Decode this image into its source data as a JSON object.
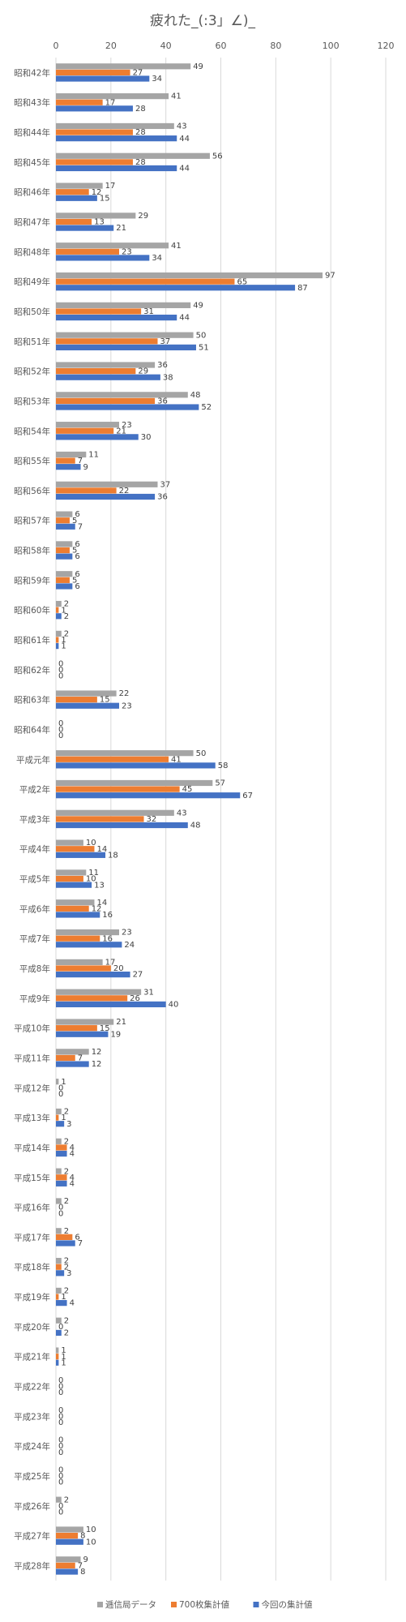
{
  "chart_data": {
    "type": "bar",
    "orientation": "horizontal",
    "title": "疲れた_(:3」∠)_",
    "xlim": [
      0,
      120
    ],
    "x_ticks": [
      "0",
      "20",
      "40",
      "60",
      "80",
      "100",
      "120"
    ],
    "grid": true,
    "legend_position": "bottom",
    "categories": [
      "昭和42年",
      "昭和43年",
      "昭和44年",
      "昭和45年",
      "昭和46年",
      "昭和47年",
      "昭和48年",
      "昭和49年",
      "昭和50年",
      "昭和51年",
      "昭和52年",
      "昭和53年",
      "昭和54年",
      "昭和55年",
      "昭和56年",
      "昭和57年",
      "昭和58年",
      "昭和59年",
      "昭和60年",
      "昭和61年",
      "昭和62年",
      "昭和63年",
      "昭和64年",
      "平成元年",
      "平成2年",
      "平成3年",
      "平成4年",
      "平成5年",
      "平成6年",
      "平成7年",
      "平成8年",
      "平成9年",
      "平成10年",
      "平成11年",
      "平成12年",
      "平成13年",
      "平成14年",
      "平成15年",
      "平成16年",
      "平成17年",
      "平成18年",
      "平成19年",
      "平成20年",
      "平成21年",
      "平成22年",
      "平成23年",
      "平成24年",
      "平成25年",
      "平成26年",
      "平成27年",
      "平成28年"
    ],
    "series": [
      {
        "name": "逓信局データ",
        "color": "#a5a5a5",
        "values": [
          49,
          41,
          43,
          56,
          17,
          29,
          41,
          97,
          49,
          50,
          36,
          48,
          23,
          11,
          37,
          6,
          6,
          6,
          2,
          2,
          0,
          22,
          0,
          50,
          57,
          43,
          10,
          11,
          14,
          23,
          17,
          31,
          21,
          12,
          1,
          2,
          2,
          2,
          2,
          2,
          2,
          2,
          2,
          1,
          0,
          0,
          0,
          0,
          2,
          10,
          9
        ]
      },
      {
        "name": "700枚集計値",
        "color": "#ed7d31",
        "values": [
          27,
          17,
          28,
          28,
          12,
          13,
          23,
          65,
          31,
          37,
          29,
          36,
          21,
          7,
          22,
          5,
          5,
          5,
          1,
          1,
          0,
          15,
          0,
          41,
          45,
          32,
          14,
          10,
          12,
          16,
          20,
          26,
          15,
          7,
          0,
          1,
          4,
          4,
          0,
          6,
          2,
          1,
          0,
          1,
          0,
          0,
          0,
          0,
          0,
          8,
          7
        ]
      },
      {
        "name": "今回の集計値",
        "color": "#4472c4",
        "values": [
          34,
          28,
          44,
          44,
          15,
          21,
          34,
          87,
          44,
          51,
          38,
          52,
          30,
          9,
          36,
          7,
          6,
          6,
          2,
          1,
          0,
          23,
          0,
          58,
          67,
          48,
          18,
          13,
          16,
          24,
          27,
          40,
          19,
          12,
          0,
          3,
          4,
          4,
          0,
          7,
          3,
          4,
          2,
          1,
          0,
          0,
          0,
          0,
          0,
          10,
          8
        ]
      }
    ]
  }
}
